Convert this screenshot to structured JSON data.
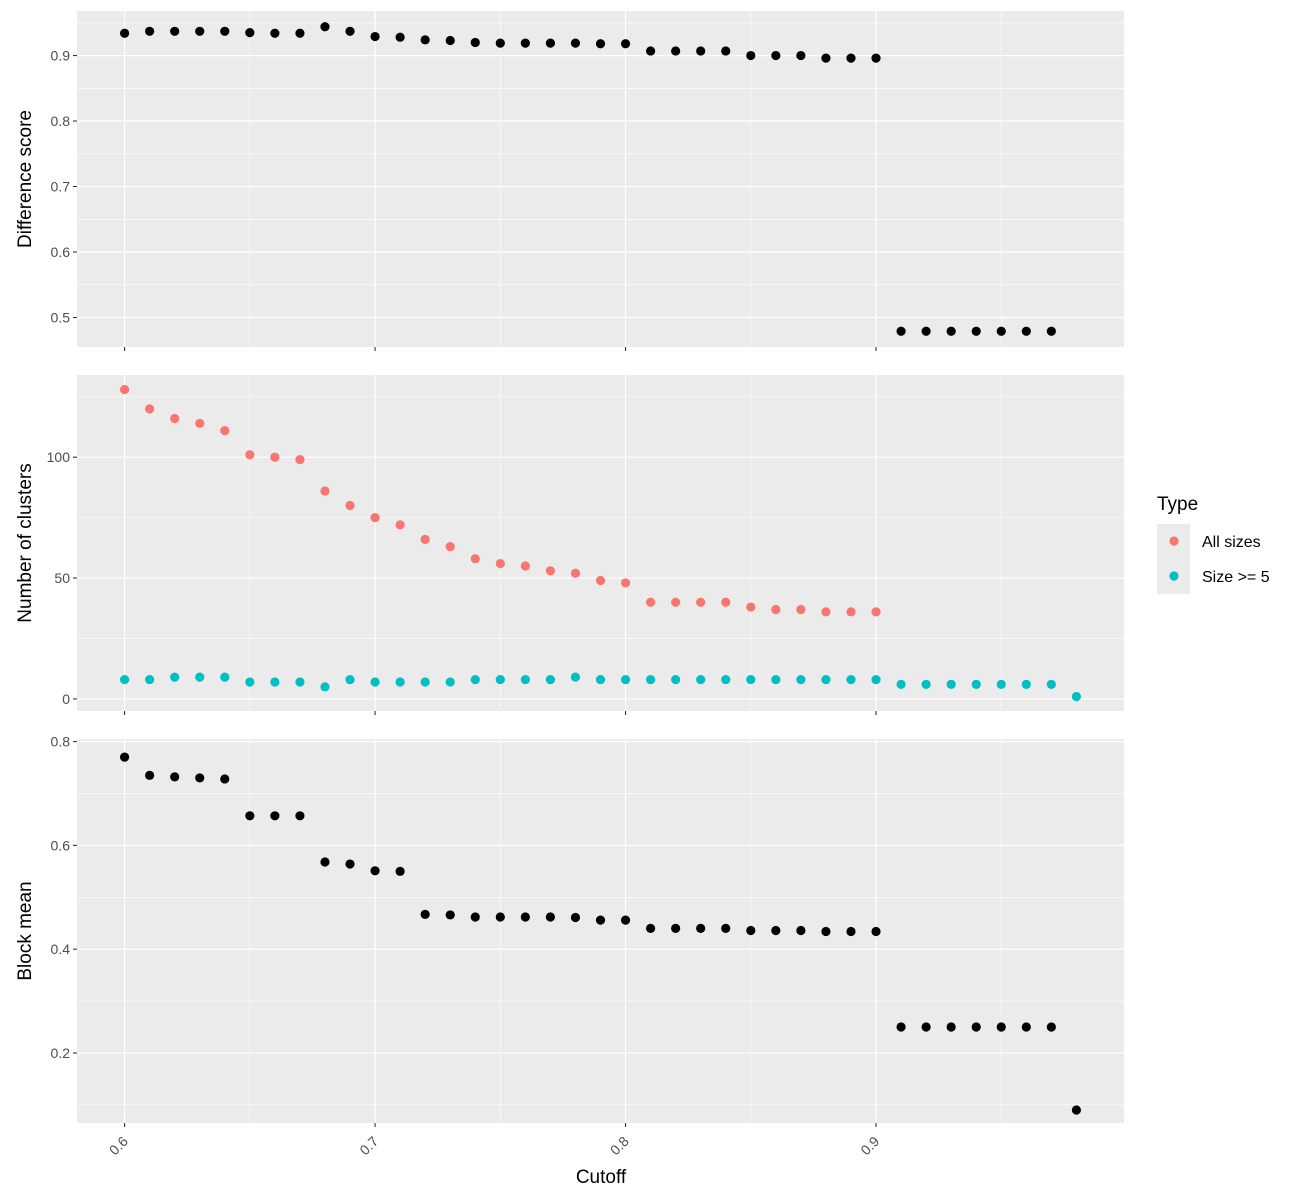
{
  "chart_data": {
    "type": "scatter",
    "xlabel": "Cutoff",
    "x_ticks": [
      "0.6",
      "0.7",
      "0.8",
      "0.9"
    ],
    "x_tick_values": [
      0.6,
      0.7,
      0.8,
      0.9
    ],
    "xlim": [
      0.581,
      0.999
    ],
    "grid": true,
    "legend_position": "right",
    "legend": {
      "title": "Type",
      "entries": [
        {
          "name": "All sizes",
          "color": "#F8766D"
        },
        {
          "name": "Size >= 5",
          "color": "#00BFC4"
        }
      ]
    },
    "panels": [
      {
        "ylabel": "Difference score",
        "ylim": [
          0.455,
          0.968
        ],
        "y_ticks": [
          "0.5",
          "0.6",
          "0.7",
          "0.8",
          "0.9"
        ],
        "y_tick_values": [
          0.5,
          0.6,
          0.7,
          0.8,
          0.9
        ],
        "series": [
          {
            "color": "#000000",
            "x": [
              0.6,
              0.61,
              0.62,
              0.63,
              0.64,
              0.65,
              0.66,
              0.67,
              0.68,
              0.69,
              0.7,
              0.71,
              0.72,
              0.73,
              0.74,
              0.75,
              0.76,
              0.77,
              0.78,
              0.79,
              0.8,
              0.81,
              0.82,
              0.83,
              0.84,
              0.85,
              0.86,
              0.87,
              0.88,
              0.89,
              0.9,
              0.91,
              0.92,
              0.93,
              0.94,
              0.95,
              0.96,
              0.97
            ],
            "y": [
              0.934,
              0.937,
              0.937,
              0.937,
              0.937,
              0.935,
              0.934,
              0.934,
              0.944,
              0.937,
              0.929,
              0.928,
              0.924,
              0.923,
              0.92,
              0.919,
              0.919,
              0.919,
              0.919,
              0.918,
              0.918,
              0.907,
              0.907,
              0.907,
              0.907,
              0.9,
              0.9,
              0.9,
              0.896,
              0.896,
              0.896,
              0.479,
              0.479,
              0.479,
              0.479,
              0.479,
              0.479,
              0.479
            ]
          }
        ]
      },
      {
        "ylabel": "Number of clusters",
        "ylim": [
          -5,
          134
        ],
        "y_ticks": [
          "0",
          "50",
          "100"
        ],
        "y_tick_values": [
          0,
          50,
          100
        ],
        "series": [
          {
            "name": "All sizes",
            "color": "#F8766D",
            "x": [
              0.6,
              0.61,
              0.62,
              0.63,
              0.64,
              0.65,
              0.66,
              0.67,
              0.68,
              0.69,
              0.7,
              0.71,
              0.72,
              0.73,
              0.74,
              0.75,
              0.76,
              0.77,
              0.78,
              0.79,
              0.8,
              0.81,
              0.82,
              0.83,
              0.84,
              0.85,
              0.86,
              0.87,
              0.88,
              0.89,
              0.9
            ],
            "y": [
              128,
              120,
              116,
              114,
              111,
              101,
              100,
              99,
              86,
              80,
              75,
              72,
              66,
              63,
              58,
              56,
              55,
              53,
              52,
              49,
              48,
              40,
              40,
              40,
              40,
              38,
              37,
              37,
              36,
              36,
              36
            ]
          },
          {
            "name": "Size >= 5",
            "color": "#00BFC4",
            "x": [
              0.6,
              0.61,
              0.62,
              0.63,
              0.64,
              0.65,
              0.66,
              0.67,
              0.68,
              0.69,
              0.7,
              0.71,
              0.72,
              0.73,
              0.74,
              0.75,
              0.76,
              0.77,
              0.78,
              0.79,
              0.8,
              0.81,
              0.82,
              0.83,
              0.84,
              0.85,
              0.86,
              0.87,
              0.88,
              0.89,
              0.9,
              0.91,
              0.92,
              0.93,
              0.94,
              0.95,
              0.96,
              0.97,
              0.98
            ],
            "y": [
              8,
              8,
              9,
              9,
              9,
              7,
              7,
              7,
              5,
              8,
              7,
              7,
              7,
              7,
              8,
              8,
              8,
              8,
              9,
              8,
              8,
              8,
              8,
              8,
              8,
              8,
              8,
              8,
              8,
              8,
              8,
              6,
              6,
              6,
              6,
              6,
              6,
              6,
              1
            ]
          }
        ]
      },
      {
        "ylabel": "Block mean",
        "ylim": [
          0.065,
          0.805
        ],
        "y_ticks": [
          "0.2",
          "0.4",
          "0.6",
          "0.8"
        ],
        "y_tick_values": [
          0.2,
          0.4,
          0.6,
          0.8
        ],
        "series": [
          {
            "color": "#000000",
            "x": [
              0.6,
              0.61,
              0.62,
              0.63,
              0.64,
              0.65,
              0.66,
              0.67,
              0.68,
              0.69,
              0.7,
              0.71,
              0.72,
              0.73,
              0.74,
              0.75,
              0.76,
              0.77,
              0.78,
              0.79,
              0.8,
              0.81,
              0.82,
              0.83,
              0.84,
              0.85,
              0.86,
              0.87,
              0.88,
              0.89,
              0.9,
              0.91,
              0.92,
              0.93,
              0.94,
              0.95,
              0.96,
              0.97,
              0.98
            ],
            "y": [
              0.77,
              0.735,
              0.732,
              0.73,
              0.728,
              0.657,
              0.657,
              0.657,
              0.568,
              0.564,
              0.551,
              0.55,
              0.467,
              0.466,
              0.462,
              0.462,
              0.462,
              0.462,
              0.461,
              0.456,
              0.456,
              0.44,
              0.44,
              0.44,
              0.44,
              0.436,
              0.436,
              0.436,
              0.434,
              0.434,
              0.434,
              0.25,
              0.25,
              0.25,
              0.25,
              0.25,
              0.25,
              0.25,
              0.09
            ]
          }
        ]
      }
    ]
  }
}
